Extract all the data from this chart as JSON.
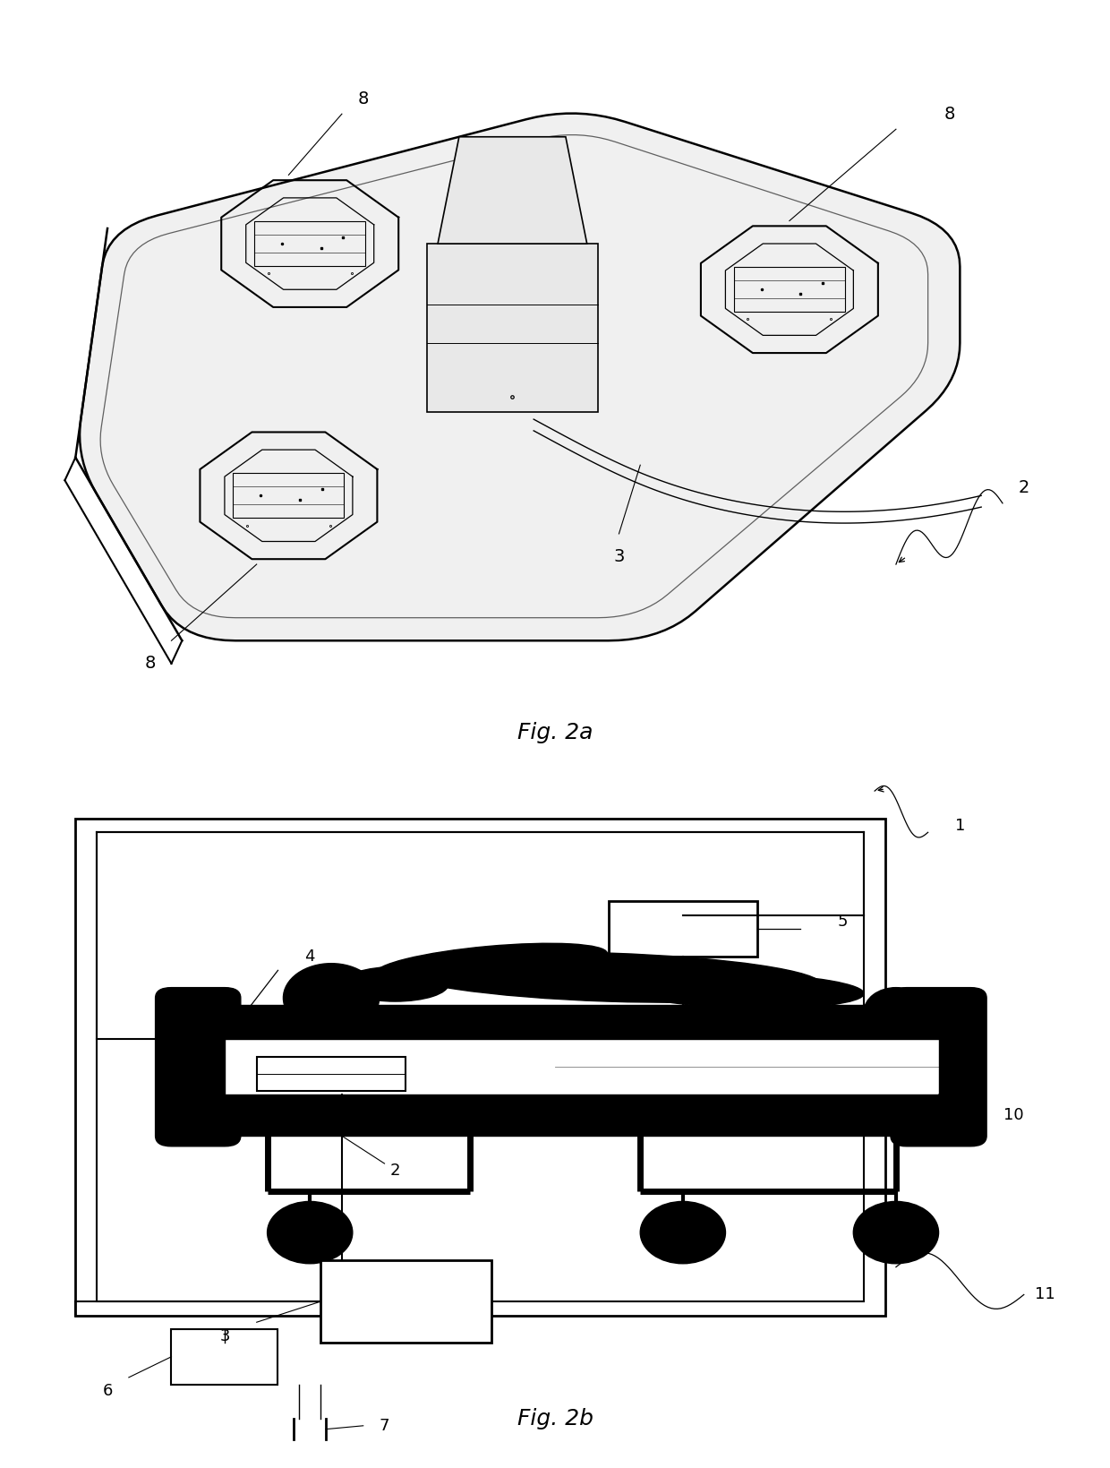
{
  "fig_width": 12.4,
  "fig_height": 16.39,
  "bg_color": "#ffffff",
  "line_color": "#000000",
  "fig2a_label": "Fig. 2a",
  "fig2b_label": "Fig. 2b"
}
